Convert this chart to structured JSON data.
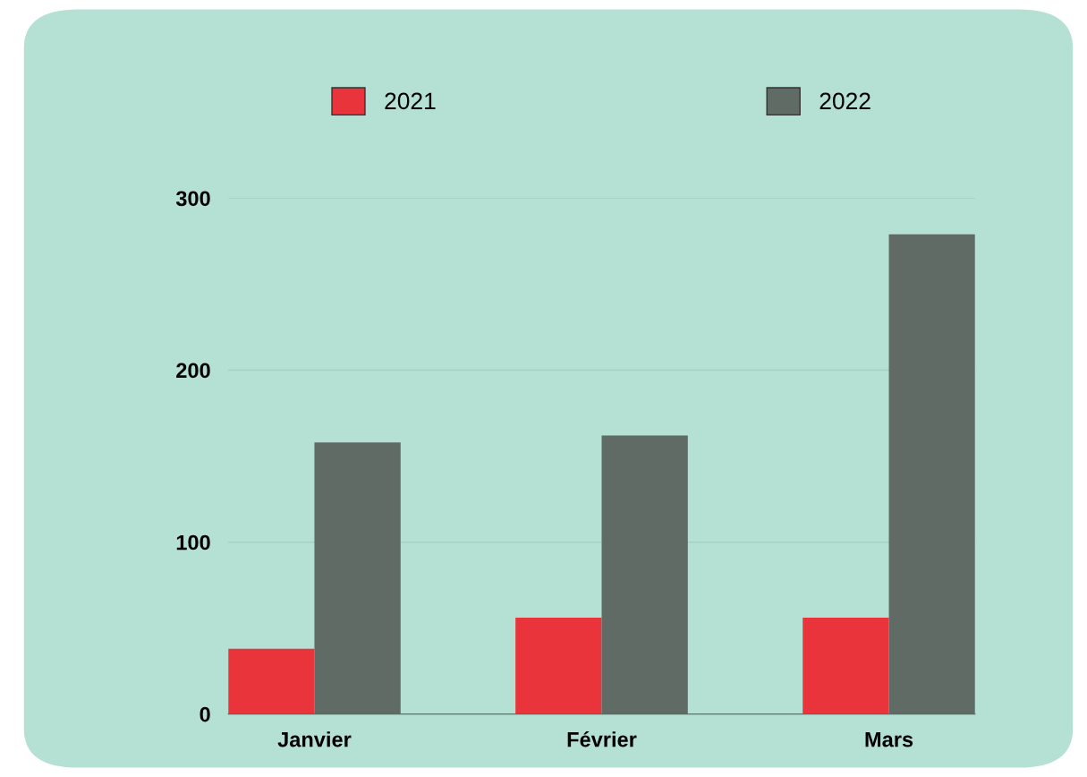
{
  "chart_data": {
    "type": "bar",
    "categories": [
      "Janvier",
      "Février",
      "Mars"
    ],
    "series": [
      {
        "name": "2021",
        "color": "#e8343a",
        "values": [
          38,
          56,
          56
        ]
      },
      {
        "name": "2022",
        "color": "#616b66",
        "values": [
          158,
          162,
          279
        ]
      }
    ],
    "ylim": [
      0,
      300
    ],
    "yticks": [
      0,
      100,
      200,
      300
    ],
    "grid": "y",
    "legend": "top"
  }
}
